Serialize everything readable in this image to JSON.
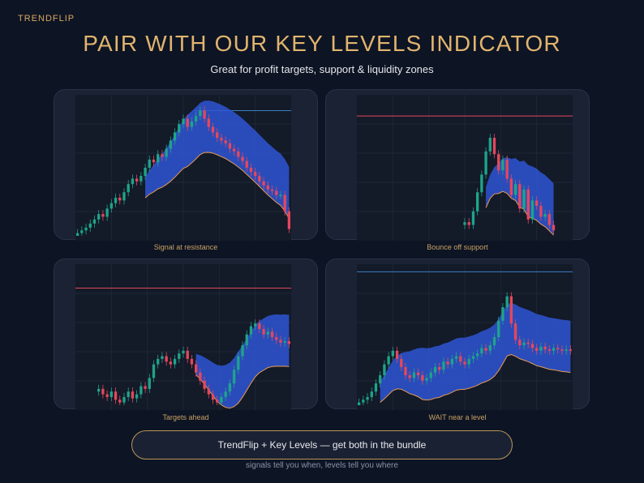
{
  "brand": {
    "name": "TRENDFLIP"
  },
  "header": {
    "title": "PAIR WITH OUR KEY LEVELS INDICATOR",
    "subtitle": "Great for profit targets, support & liquidity zones"
  },
  "colors": {
    "background": "#0d1424",
    "card": "#1b2234",
    "accent_gold": "#e1b46e",
    "bull": "#1fa38a",
    "bear": "#e5475c",
    "band": "#2f56d4",
    "band_edge": "#e79a55",
    "level_red": "#e5475c",
    "level_blue": "#3b7fc4"
  },
  "panels": [
    {
      "caption": "Signal at resistance",
      "level": {
        "price": 0.92,
        "color": "#3b7fc4",
        "from": 0.55
      },
      "band_start": 0.32,
      "closes": [
        0.02,
        0.04,
        0.06,
        0.09,
        0.12,
        0.16,
        0.14,
        0.2,
        0.24,
        0.28,
        0.26,
        0.32,
        0.38,
        0.42,
        0.4,
        0.44,
        0.5,
        0.56,
        0.54,
        0.6,
        0.58,
        0.64,
        0.7,
        0.76,
        0.82,
        0.86,
        0.8,
        0.84,
        0.88,
        0.92,
        0.86,
        0.8,
        0.76,
        0.72,
        0.7,
        0.68,
        0.64,
        0.62,
        0.58,
        0.55,
        0.5,
        0.47,
        0.44,
        0.4,
        0.37,
        0.34,
        0.33,
        0.3,
        0.3,
        0.18,
        0.05
      ]
    },
    {
      "caption": "Bounce off support",
      "level": {
        "price": 0.88,
        "color": "#e5475c",
        "from": 0
      },
      "band_start": 0.6,
      "closes": [
        null,
        null,
        null,
        null,
        null,
        null,
        null,
        null,
        null,
        null,
        null,
        null,
        null,
        null,
        null,
        null,
        null,
        null,
        null,
        null,
        null,
        null,
        null,
        null,
        null,
        0.1,
        0.08,
        0.18,
        0.32,
        0.45,
        0.62,
        0.72,
        0.6,
        0.48,
        0.56,
        0.42,
        0.3,
        0.38,
        0.2,
        0.34,
        0.12,
        0.26,
        0.22,
        0.14,
        0.16,
        0.08,
        0.04,
        null,
        null,
        null,
        null
      ]
    },
    {
      "caption": "Targets ahead",
      "level": {
        "price": 0.86,
        "color": "#e5475c",
        "from": 0
      },
      "band_start": 0.55,
      "closes": [
        null,
        null,
        null,
        null,
        null,
        0.12,
        0.08,
        0.06,
        0.1,
        0.04,
        0.02,
        0.06,
        0.1,
        0.05,
        0.08,
        0.14,
        0.12,
        0.2,
        0.3,
        0.34,
        0.36,
        0.32,
        0.3,
        0.34,
        0.38,
        0.4,
        0.34,
        0.3,
        0.24,
        0.18,
        0.12,
        0.08,
        0.04,
        0.02,
        0.06,
        0.1,
        0.16,
        0.26,
        0.36,
        0.44,
        0.52,
        0.58,
        0.6,
        0.56,
        0.52,
        0.54,
        0.5,
        0.48,
        0.46,
        0.47,
        0.45
      ]
    },
    {
      "caption": "WAIT near a level",
      "level": {
        "price": 0.98,
        "color": "#3b7fc4",
        "from": 0
      },
      "band_start": 0.1,
      "closes": [
        0.02,
        0.04,
        0.06,
        0.1,
        0.16,
        0.22,
        0.3,
        0.36,
        0.4,
        0.34,
        0.28,
        0.22,
        0.2,
        0.24,
        0.22,
        0.18,
        0.2,
        0.24,
        0.28,
        0.26,
        0.32,
        0.3,
        0.34,
        0.36,
        0.32,
        0.3,
        0.34,
        0.36,
        0.38,
        0.42,
        0.4,
        0.44,
        0.5,
        0.62,
        0.72,
        0.8,
        0.6,
        0.48,
        0.44,
        0.46,
        0.45,
        0.42,
        0.4,
        0.43,
        0.41,
        0.4,
        0.42,
        0.41,
        0.4,
        0.41,
        0.4
      ]
    }
  ],
  "cta": {
    "label": "TrendFlip + Key Levels — get both in the bundle"
  },
  "footer": {
    "tagline": "signals tell you when, levels tell you where"
  }
}
